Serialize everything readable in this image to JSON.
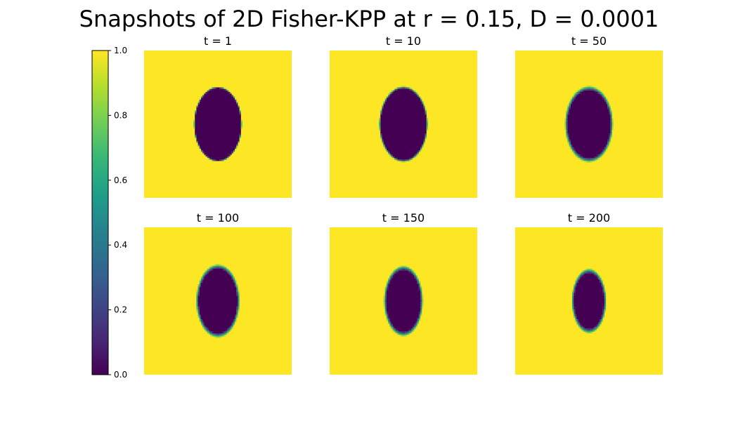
{
  "figure": {
    "title": "Snapshots of 2D Fisher-KPP at r = 0.15, D = 0.0001"
  },
  "chart_data": {
    "type": "heatmap",
    "title": "Snapshots of 2D Fisher-KPP at r = 0.15, D = 0.0001",
    "colormap": "viridis",
    "value_range": [
      0,
      1
    ],
    "background_value": 1.0,
    "interior_value": 0.0,
    "region_shape": "ellipse",
    "axes_visible": false,
    "panels": [
      {
        "title": "t = 1",
        "t": 1,
        "center": [
          0.5,
          0.5
        ],
        "semi_axis_x": 0.16,
        "semi_axis_y": 0.25,
        "front_blur": 0.004
      },
      {
        "title": "t = 10",
        "t": 10,
        "center": [
          0.5,
          0.5
        ],
        "semi_axis_x": 0.16,
        "semi_axis_y": 0.25,
        "front_blur": 0.006
      },
      {
        "title": "t = 50",
        "t": 50,
        "center": [
          0.5,
          0.5
        ],
        "semi_axis_x": 0.155,
        "semi_axis_y": 0.245,
        "front_blur": 0.012
      },
      {
        "title": "t = 100",
        "t": 100,
        "center": [
          0.5,
          0.5
        ],
        "semi_axis_x": 0.14,
        "semi_axis_y": 0.235,
        "front_blur": 0.012
      },
      {
        "title": "t = 150",
        "t": 150,
        "center": [
          0.5,
          0.5
        ],
        "semi_axis_x": 0.125,
        "semi_axis_y": 0.225,
        "front_blur": 0.012
      },
      {
        "title": "t = 200",
        "t": 200,
        "center": [
          0.5,
          0.5
        ],
        "semi_axis_x": 0.11,
        "semi_axis_y": 0.205,
        "front_blur": 0.012
      }
    ],
    "colorbar": {
      "ticks": [
        0.0,
        0.2,
        0.4,
        0.6,
        0.8,
        1.0
      ],
      "tick_labels": [
        "0.0",
        "0.2",
        "0.4",
        "0.6",
        "0.8",
        "1.0"
      ],
      "location": "left"
    }
  }
}
